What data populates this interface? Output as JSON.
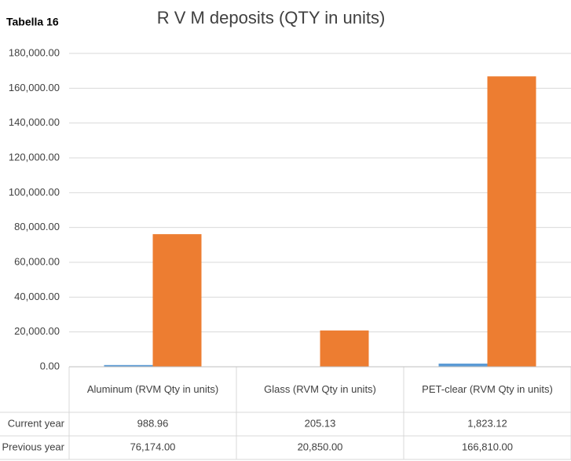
{
  "chart_data": {
    "type": "bar",
    "title": "R V M deposits (QTY in units)",
    "label": "Tabella 16",
    "categories": [
      "Aluminum (RVM Qty in units)",
      "Glass  (RVM Qty in units)",
      "PET-clear  (RVM Qty in units)"
    ],
    "series": [
      {
        "name": "Current year",
        "color": "#5b9bd5",
        "values": [
          988.96,
          205.13,
          1823.12
        ],
        "value_labels": [
          "988.96",
          "205.13",
          "1,823.12"
        ]
      },
      {
        "name": "Previous year",
        "color": "#ed7d31",
        "values": [
          76174,
          20850,
          166810
        ],
        "value_labels": [
          "76,174.00",
          "20,850.00",
          "166,810.00"
        ]
      }
    ],
    "ylim": [
      0,
      180000
    ],
    "yticks": [
      {
        "value": 0,
        "label": "0.00"
      },
      {
        "value": 20000,
        "label": "20,000.00"
      },
      {
        "value": 40000,
        "label": "40,000.00"
      },
      {
        "value": 60000,
        "label": "60,000.00"
      },
      {
        "value": 80000,
        "label": "80,000.00"
      },
      {
        "value": 100000,
        "label": "100,000.00"
      },
      {
        "value": 120000,
        "label": "120,000.00"
      },
      {
        "value": 140000,
        "label": "140,000.00"
      },
      {
        "value": 160000,
        "label": "160,000.00"
      },
      {
        "value": 180000,
        "label": "180,000.00"
      }
    ],
    "grid": true
  }
}
